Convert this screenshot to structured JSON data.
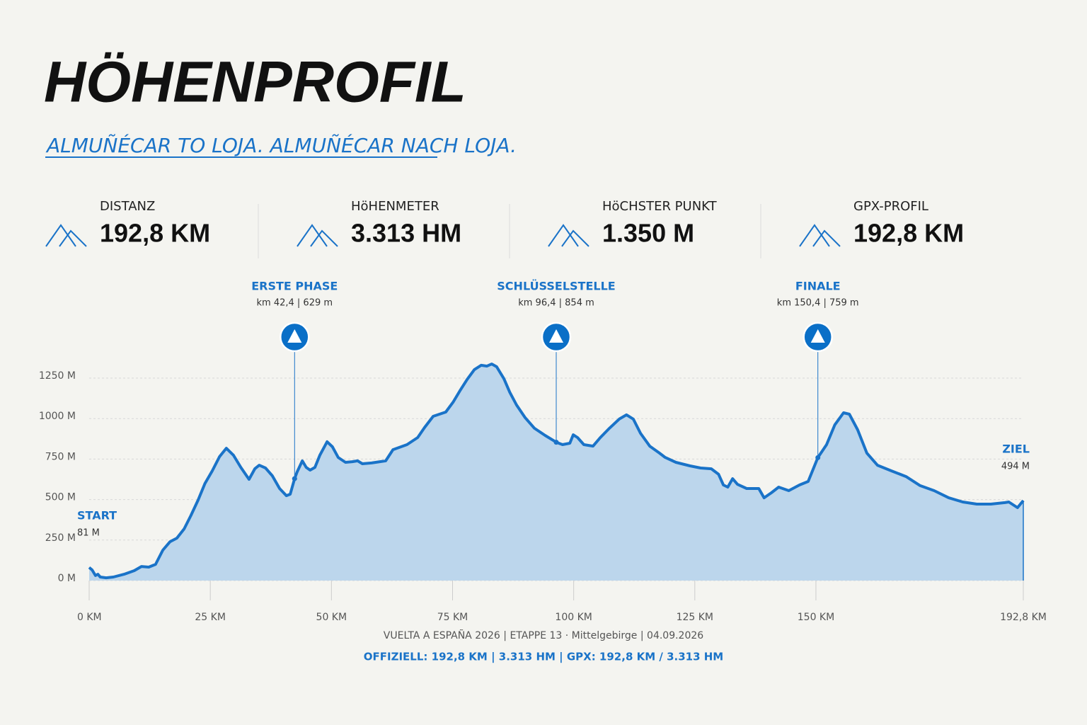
{
  "header": {
    "title": "HÖHENPROFIL",
    "subtitle": "ALMUÑÉCAR TO LOJA. ALMUÑÉCAR NACH LOJA."
  },
  "stats": [
    {
      "label": "DISTANZ",
      "value": "192,8 KM"
    },
    {
      "label": "HöHENMETER",
      "value": "3.313 HM"
    },
    {
      "label": "HöCHSTER PUNKT",
      "value": "1.350 M"
    },
    {
      "label": "GPX-PROFIL",
      "value": "192,8 KM"
    }
  ],
  "chart_data": {
    "type": "area",
    "color": "#1a73c8",
    "fill": "#bcd6ec",
    "grid": true,
    "x": [
      0,
      0.6,
      1.3,
      1.8,
      2.3,
      3.5,
      5,
      7.2,
      9.3,
      10.8,
      12.3,
      13.7,
      15.2,
      16.7,
      18.1,
      19.6,
      21,
      22.5,
      23.9,
      25.4,
      26.9,
      28.3,
      29.8,
      31.3,
      33,
      34.2,
      35.1,
      36.4,
      37.8,
      39.3,
      40.7,
      41.5,
      42.4,
      42.9,
      44,
      44.8,
      45.6,
      46.6,
      47.6,
      49.1,
      50.2,
      51.4,
      52.9,
      54.3,
      55.4,
      56.4,
      58.3,
      61.2,
      62.7,
      65.6,
      67.8,
      69.2,
      71,
      73.6,
      75.1,
      76.5,
      78,
      79.5,
      80.9,
      82.1,
      83.1,
      84.1,
      85.6,
      86.8,
      88.2,
      90,
      91.9,
      94.1,
      96.4,
      97.7,
      99.2,
      99.9,
      100.8,
      102.1,
      104,
      105.5,
      107.2,
      109.4,
      110.9,
      112.3,
      113.8,
      115.7,
      117.7,
      118.9,
      121.1,
      124,
      126.2,
      128.4,
      129.9,
      130.9,
      131.8,
      132.8,
      133.8,
      135.7,
      137.6,
      138.2,
      139.3,
      140.8,
      142.3,
      144.4,
      146.6,
      148.4,
      150.4,
      152.2,
      153.9,
      155.7,
      156.9,
      158.6,
      160.5,
      162.7,
      165.6,
      168.6,
      171.5,
      174.4,
      177.4,
      180.3,
      183.2,
      186.1,
      189,
      189.8,
      191.6,
      192.8
    ],
    "values": [
      81,
      66,
      31,
      39,
      22,
      17,
      22,
      39,
      61,
      87,
      83,
      100,
      188,
      240,
      262,
      319,
      402,
      498,
      599,
      677,
      765,
      817,
      773,
      699,
      625,
      690,
      712,
      695,
      647,
      568,
      524,
      533,
      629,
      669,
      739,
      699,
      682,
      699,
      773,
      857,
      826,
      760,
      730,
      734,
      739,
      721,
      726,
      739,
      808,
      839,
      883,
      944,
      1014,
      1040,
      1101,
      1171,
      1241,
      1302,
      1329,
      1324,
      1337,
      1320,
      1246,
      1163,
      1084,
      1005,
      940,
      896,
      854,
      839,
      848,
      900,
      883,
      839,
      830,
      883,
      935,
      997,
      1023,
      997,
      909,
      830,
      787,
      760,
      730,
      708,
      695,
      690,
      656,
      590,
      577,
      629,
      594,
      568,
      568,
      568,
      511,
      542,
      577,
      555,
      590,
      612,
      759,
      839,
      962,
      1036,
      1027,
      931,
      787,
      712,
      677,
      642,
      586,
      555,
      511,
      485,
      472,
      472,
      481,
      485,
      450,
      494
    ],
    "xlim": [
      0,
      192.8
    ],
    "ylim": [
      0,
      1250
    ],
    "xticks": [
      {
        "value": 0,
        "label": "0 KM"
      },
      {
        "value": 25,
        "label": "25 KM"
      },
      {
        "value": 50,
        "label": "50 KM"
      },
      {
        "value": 75,
        "label": "75 KM"
      },
      {
        "value": 100,
        "label": "100 KM"
      },
      {
        "value": 125,
        "label": "125 KM"
      },
      {
        "value": 150,
        "label": "150 KM"
      },
      {
        "value": 192.8,
        "label": "192,8 KM"
      }
    ],
    "yticks": [
      {
        "value": 0,
        "label": "0 M"
      },
      {
        "value": 250,
        "label": "250 M"
      },
      {
        "value": 500,
        "label": "500 M"
      },
      {
        "value": 750,
        "label": "750 M"
      },
      {
        "value": 1000,
        "label": "1000 M"
      },
      {
        "value": 1250,
        "label": "1250 M"
      }
    ],
    "markers": [
      {
        "label": "ERSTE PHASE",
        "detail": "km 42,4 | 629 m",
        "km": 42.4,
        "elevation": 629
      },
      {
        "label": "SCHLÜSSELSTELLE",
        "detail": "km 96,4 | 854 m",
        "km": 96.4,
        "elevation": 854
      },
      {
        "label": "FINALE",
        "detail": "km 150,4 | 759 m",
        "km": 150.4,
        "elevation": 759
      }
    ],
    "start": {
      "label": "START",
      "detail": "81 M"
    },
    "end": {
      "label": "ZIEL",
      "detail": "494 M"
    }
  },
  "footer": {
    "line1": "VUELTA A ESPAÑA 2026 | ETAPPE 13 · Mittelgebirge | 04.09.2026",
    "line2": "OFFIZIELL: 192,8 KM | 3.313 HM | GPX: 192,8 KM / 3.313 HM"
  }
}
